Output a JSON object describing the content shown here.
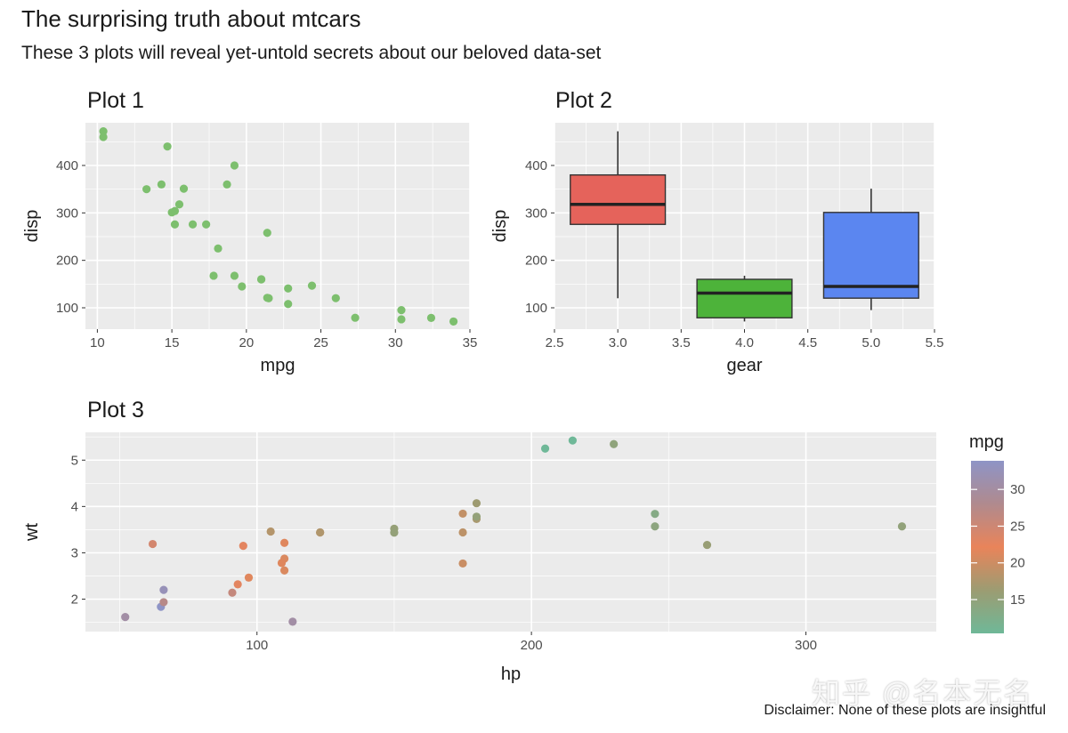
{
  "title": "The surprising truth about mtcars",
  "subtitle": "These 3 plots will reveal yet-untold secrets about our beloved data-set",
  "caption": "Disclaimer: None of these plots are insightful",
  "watermark": "知乎 @名本无名",
  "chart_data": [
    {
      "type": "scatter",
      "title": "Plot 1",
      "xlabel": "mpg",
      "ylabel": "disp",
      "xlim": [
        9.2,
        35
      ],
      "ylim": [
        55,
        490
      ],
      "xticks": [
        10,
        15,
        20,
        25,
        30,
        35
      ],
      "yticks": [
        100,
        200,
        300,
        400
      ],
      "color": "#7dbf6e",
      "points": [
        [
          21.0,
          160
        ],
        [
          21.0,
          160
        ],
        [
          22.8,
          108
        ],
        [
          21.4,
          258
        ],
        [
          18.7,
          360
        ],
        [
          18.1,
          225
        ],
        [
          14.3,
          360
        ],
        [
          24.4,
          146.7
        ],
        [
          22.8,
          140.8
        ],
        [
          19.2,
          167.6
        ],
        [
          17.8,
          167.6
        ],
        [
          16.4,
          275.8
        ],
        [
          17.3,
          275.8
        ],
        [
          15.2,
          275.8
        ],
        [
          10.4,
          472
        ],
        [
          10.4,
          460
        ],
        [
          14.7,
          440
        ],
        [
          32.4,
          78.7
        ],
        [
          30.4,
          75.7
        ],
        [
          33.9,
          71.1
        ],
        [
          21.5,
          120.1
        ],
        [
          15.5,
          318
        ],
        [
          15.2,
          304
        ],
        [
          13.3,
          350
        ],
        [
          19.2,
          400
        ],
        [
          27.3,
          79
        ],
        [
          26.0,
          120.3
        ],
        [
          30.4,
          95.1
        ],
        [
          15.8,
          351
        ],
        [
          19.7,
          145
        ],
        [
          15.0,
          301
        ],
        [
          21.4,
          121
        ]
      ]
    },
    {
      "type": "boxplot",
      "title": "Plot 2",
      "xlabel": "gear",
      "ylabel": "disp",
      "xlim": [
        2.5,
        5.5
      ],
      "ylim": [
        55,
        490
      ],
      "xticks": [
        2.5,
        3.0,
        3.5,
        4.0,
        4.5,
        5.0,
        5.5
      ],
      "xtick_labels": [
        "2.5",
        "3.0",
        "3.5",
        "4.0",
        "4.5",
        "5.0",
        "5.5"
      ],
      "yticks": [
        100,
        200,
        300,
        400
      ],
      "boxes": [
        {
          "x": 3,
          "whisker_low": 120.1,
          "q1": 275.8,
          "median": 318,
          "q3": 380,
          "whisker_high": 472,
          "color": "#e5635b"
        },
        {
          "x": 4,
          "whisker_low": 71.1,
          "q1": 78.9,
          "median": 130.9,
          "q3": 160,
          "whisker_high": 167.6,
          "color": "#4db33a"
        },
        {
          "x": 5,
          "whisker_low": 95.1,
          "q1": 120.3,
          "median": 145,
          "q3": 301,
          "whisker_high": 351,
          "color": "#5b86f0"
        }
      ]
    },
    {
      "type": "scatter",
      "title": "Plot 3",
      "xlabel": "hp",
      "ylabel": "wt",
      "xlim": [
        37.5,
        347.5
      ],
      "ylim": [
        1.3,
        5.6
      ],
      "xticks": [
        100,
        200,
        300
      ],
      "yticks": [
        2,
        3,
        4,
        5
      ],
      "legend": {
        "title": "mpg",
        "ticks": [
          15,
          20,
          25,
          30
        ],
        "range": [
          10.4,
          33.9
        ],
        "colors": [
          "#6fb898",
          "#9c9c72",
          "#e9845a",
          "#b08a8e",
          "#8e94c6"
        ]
      },
      "points": [
        [
          110,
          2.62,
          21.0
        ],
        [
          110,
          2.875,
          21.0
        ],
        [
          93,
          2.32,
          22.8
        ],
        [
          110,
          3.215,
          21.4
        ],
        [
          175,
          3.44,
          18.7
        ],
        [
          105,
          3.46,
          18.1
        ],
        [
          245,
          3.57,
          14.3
        ],
        [
          62,
          3.19,
          24.4
        ],
        [
          95,
          3.15,
          22.8
        ],
        [
          123,
          3.44,
          19.2
        ],
        [
          123,
          3.44,
          17.8
        ],
        [
          180,
          4.07,
          16.4
        ],
        [
          180,
          3.73,
          17.3
        ],
        [
          180,
          3.78,
          15.2
        ],
        [
          205,
          5.25,
          10.4
        ],
        [
          215,
          5.424,
          10.4
        ],
        [
          230,
          5.345,
          14.7
        ],
        [
          66,
          2.2,
          32.4
        ],
        [
          52,
          1.615,
          30.4
        ],
        [
          65,
          1.835,
          33.9
        ],
        [
          97,
          2.465,
          21.5
        ],
        [
          150,
          3.52,
          15.5
        ],
        [
          150,
          3.435,
          15.2
        ],
        [
          245,
          3.84,
          13.3
        ],
        [
          175,
          3.845,
          19.2
        ],
        [
          66,
          1.935,
          27.3
        ],
        [
          91,
          2.14,
          26.0
        ],
        [
          113,
          1.513,
          30.4
        ],
        [
          264,
          3.17,
          15.8
        ],
        [
          175,
          2.77,
          19.7
        ],
        [
          335,
          3.57,
          15.0
        ],
        [
          109,
          2.78,
          21.4
        ]
      ]
    }
  ]
}
